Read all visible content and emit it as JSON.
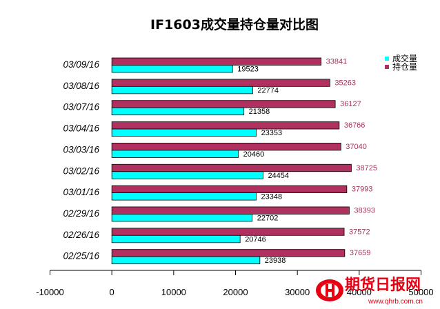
{
  "chart_data": {
    "type": "bar",
    "orientation": "horizontal",
    "title": "IF1603成交量持仓量对比图",
    "categories": [
      "03/09/16",
      "03/08/16",
      "03/07/16",
      "03/04/16",
      "03/03/16",
      "03/02/16",
      "03/01/16",
      "02/29/16",
      "02/26/16",
      "02/25/16"
    ],
    "series": [
      {
        "name": "成交量",
        "color": "#00ffff",
        "values": [
          19523,
          22774,
          21358,
          23353,
          20460,
          24454,
          23348,
          22702,
          20746,
          23938
        ]
      },
      {
        "name": "持仓量",
        "color": "#b03060",
        "values": [
          33841,
          35263,
          36127,
          36766,
          37040,
          38725,
          37993,
          38393,
          37572,
          37659
        ]
      }
    ],
    "xlim": [
      -10000,
      50000
    ],
    "xticks": [
      -10000,
      0,
      10000,
      20000,
      30000,
      40000,
      50000
    ],
    "legend": "top-right",
    "grid": false
  },
  "watermark": {
    "text": "期货日报网",
    "url": "www.qhrb.com.cn",
    "color": "#e60012"
  }
}
